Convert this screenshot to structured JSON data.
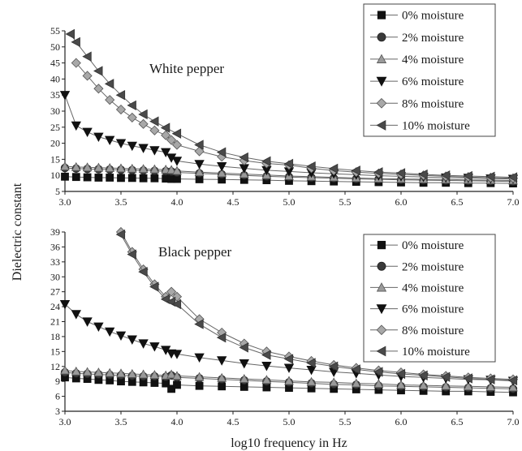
{
  "chart_data": [
    {
      "type": "line",
      "title": "White pepper",
      "xlabel": "log10 frequency in Hz",
      "ylabel": "Dielectric constant",
      "xlim": [
        3.0,
        7.0
      ],
      "ylim": [
        5,
        55
      ],
      "xticks": [
        "3.0",
        "3.5",
        "4.0",
        "4.5",
        "5.0",
        "5.5",
        "6.0",
        "6.5",
        "7.0"
      ],
      "yticks": [
        "5",
        "10",
        "15",
        "20",
        "25",
        "30",
        "35",
        "40",
        "45",
        "50",
        "55"
      ],
      "legend_position": "top-right",
      "series": [
        {
          "name": "0% moisture",
          "marker": "square",
          "x": [
            3.0,
            3.1,
            3.2,
            3.3,
            3.4,
            3.5,
            3.6,
            3.7,
            3.8,
            3.9,
            3.95,
            4.0,
            4.2,
            4.4,
            4.6,
            4.8,
            5.0,
            5.2,
            5.4,
            5.6,
            5.8,
            6.0,
            6.2,
            6.4,
            6.6,
            6.8,
            7.0
          ],
          "y": [
            9.6,
            9.5,
            9.4,
            9.3,
            9.3,
            9.2,
            9.2,
            9.1,
            9.1,
            9.0,
            8.9,
            8.9,
            8.8,
            8.7,
            8.6,
            8.5,
            8.3,
            8.2,
            8.1,
            8.0,
            7.9,
            7.8,
            7.7,
            7.7,
            7.6,
            7.6,
            7.5
          ]
        },
        {
          "name": "2% moisture",
          "marker": "circle",
          "x": [
            3.0,
            3.1,
            3.2,
            3.3,
            3.4,
            3.5,
            3.6,
            3.7,
            3.8,
            3.9,
            3.95,
            4.0,
            4.2,
            4.4,
            4.6,
            4.8,
            5.0,
            5.2,
            5.4,
            5.6,
            5.8,
            6.0,
            6.2,
            6.4,
            6.6,
            6.8,
            7.0
          ],
          "y": [
            12.3,
            12.1,
            12.0,
            11.9,
            11.8,
            11.7,
            11.6,
            11.5,
            11.4,
            11.3,
            11.2,
            10.9,
            10.6,
            10.3,
            10.0,
            9.7,
            9.5,
            9.3,
            9.1,
            8.9,
            8.8,
            8.6,
            8.5,
            8.4,
            8.3,
            8.2,
            8.1
          ]
        },
        {
          "name": "4% moisture",
          "marker": "triangle-up",
          "x": [
            3.0,
            3.1,
            3.2,
            3.3,
            3.4,
            3.5,
            3.6,
            3.7,
            3.8,
            3.9,
            3.95,
            4.0,
            4.2,
            4.4,
            4.6,
            4.8,
            5.0,
            5.2,
            5.4,
            5.6,
            5.8,
            6.0,
            6.2,
            6.4,
            6.6,
            6.8,
            7.0
          ],
          "y": [
            12.8,
            12.6,
            12.5,
            12.4,
            12.3,
            12.2,
            12.1,
            12.0,
            11.9,
            11.8,
            11.7,
            11.4,
            11.0,
            10.7,
            10.4,
            10.1,
            9.8,
            9.6,
            9.4,
            9.2,
            9.0,
            8.9,
            8.8,
            8.7,
            8.6,
            8.5,
            8.4
          ]
        },
        {
          "name": "6% moisture",
          "marker": "triangle-down",
          "x": [
            3.0,
            3.1,
            3.2,
            3.3,
            3.4,
            3.5,
            3.6,
            3.7,
            3.8,
            3.9,
            3.95,
            4.0,
            4.2,
            4.4,
            4.6,
            4.8,
            5.0,
            5.2,
            5.4,
            5.6,
            5.8,
            6.0,
            6.2,
            6.4,
            6.6,
            6.8,
            7.0
          ],
          "y": [
            35,
            25.5,
            23.5,
            22,
            21,
            20,
            19.2,
            18.5,
            17.8,
            17.2,
            15.5,
            14.5,
            13.5,
            12.8,
            12.2,
            11.6,
            11.2,
            10.8,
            10.5,
            10.2,
            9.9,
            9.7,
            9.5,
            9.3,
            9.2,
            9.0,
            8.9
          ]
        },
        {
          "name": "8% moisture",
          "marker": "diamond",
          "x": [
            3.1,
            3.2,
            3.3,
            3.4,
            3.5,
            3.6,
            3.7,
            3.8,
            3.9,
            3.95,
            4.0,
            4.2,
            4.4,
            4.6,
            4.8,
            5.0,
            5.2,
            5.4,
            5.6,
            5.8,
            6.0,
            6.2,
            6.4,
            6.6,
            6.8,
            7.0
          ],
          "y": [
            45,
            41,
            37,
            33.5,
            30.5,
            28,
            26,
            24,
            22.5,
            21,
            19.5,
            17.5,
            15.8,
            14.6,
            13.7,
            13.2,
            12.2,
            11.5,
            11.0,
            10.6,
            10.3,
            10.0,
            9.7,
            9.5,
            9.3,
            9.1
          ]
        },
        {
          "name": "10% moisture",
          "marker": "triangle-left",
          "x": [
            3.05,
            3.1,
            3.2,
            3.3,
            3.4,
            3.5,
            3.6,
            3.7,
            3.8,
            3.9,
            4.0,
            4.2,
            4.4,
            4.6,
            4.8,
            5.0,
            5.2,
            5.4,
            5.6,
            5.8,
            6.0,
            6.2,
            6.4,
            6.6,
            6.8,
            7.0
          ],
          "y": [
            54,
            51.5,
            47,
            42.5,
            38.5,
            35,
            31.8,
            29,
            26.8,
            24.8,
            23,
            19.5,
            17.2,
            15.6,
            14.4,
            13.6,
            12.8,
            12.1,
            11.5,
            11.0,
            10.7,
            10.3,
            10.0,
            9.8,
            9.6,
            9.4
          ]
        }
      ]
    },
    {
      "type": "line",
      "title": "Black pepper",
      "xlabel": "log10 frequency in Hz",
      "ylabel": "Dielectric constant",
      "xlim": [
        3.0,
        7.0
      ],
      "ylim": [
        3,
        39
      ],
      "xticks": [
        "3.0",
        "3.5",
        "4.0",
        "4.5",
        "5.0",
        "5.5",
        "6.0",
        "6.5",
        "7.0"
      ],
      "yticks": [
        "3",
        "6",
        "9",
        "12",
        "15",
        "18",
        "21",
        "24",
        "27",
        "30",
        "33",
        "36",
        "39"
      ],
      "legend_position": "top-right",
      "series": [
        {
          "name": "0% moisture",
          "marker": "square",
          "x": [
            3.0,
            3.1,
            3.2,
            3.3,
            3.4,
            3.5,
            3.6,
            3.7,
            3.8,
            3.9,
            3.95,
            4.0,
            4.2,
            4.4,
            4.6,
            4.8,
            5.0,
            5.2,
            5.4,
            5.6,
            5.8,
            6.0,
            6.2,
            6.4,
            6.6,
            6.8,
            7.0
          ],
          "y": [
            9.8,
            9.6,
            9.5,
            9.3,
            9.2,
            9.0,
            8.9,
            8.8,
            8.7,
            8.6,
            7.5,
            8.3,
            8.1,
            8.0,
            7.9,
            7.8,
            7.7,
            7.6,
            7.5,
            7.4,
            7.3,
            7.2,
            7.1,
            7.0,
            7.0,
            6.9,
            6.8
          ]
        },
        {
          "name": "2% moisture",
          "marker": "circle",
          "x": [
            3.0,
            3.1,
            3.2,
            3.3,
            3.4,
            3.5,
            3.6,
            3.7,
            3.8,
            3.9,
            3.95,
            4.0,
            4.2,
            4.4,
            4.6,
            4.8,
            5.0,
            5.2,
            5.4,
            5.6,
            5.8,
            6.0,
            6.2,
            6.4,
            6.6,
            6.8,
            7.0
          ],
          "y": [
            10.8,
            10.6,
            10.5,
            10.4,
            10.3,
            10.2,
            10.1,
            10.0,
            10.0,
            9.9,
            10.2,
            9.8,
            9.6,
            9.4,
            9.2,
            9.0,
            8.8,
            8.6,
            8.4,
            8.3,
            8.1,
            8.0,
            7.9,
            7.8,
            7.7,
            7.6,
            7.5
          ]
        },
        {
          "name": "4% moisture",
          "marker": "triangle-up",
          "x": [
            3.0,
            3.1,
            3.2,
            3.3,
            3.4,
            3.5,
            3.6,
            3.7,
            3.8,
            3.9,
            3.95,
            4.0,
            4.2,
            4.4,
            4.6,
            4.8,
            5.0,
            5.2,
            5.4,
            5.6,
            5.8,
            6.0,
            6.2,
            6.4,
            6.6,
            6.8,
            7.0
          ],
          "y": [
            11.2,
            11.0,
            10.9,
            10.8,
            10.7,
            10.6,
            10.5,
            10.4,
            10.3,
            10.2,
            10.4,
            10.1,
            9.9,
            9.7,
            9.5,
            9.3,
            9.1,
            8.9,
            8.8,
            8.6,
            8.5,
            8.3,
            8.2,
            8.1,
            8.0,
            7.9,
            7.8
          ]
        },
        {
          "name": "6% moisture",
          "marker": "triangle-down",
          "x": [
            3.0,
            3.1,
            3.2,
            3.3,
            3.4,
            3.5,
            3.6,
            3.7,
            3.8,
            3.9,
            3.95,
            4.0,
            4.2,
            4.4,
            4.6,
            4.8,
            5.0,
            5.2,
            5.4,
            5.6,
            5.8,
            6.0,
            6.2,
            6.4,
            6.6,
            6.8,
            7.0
          ],
          "y": [
            24.5,
            22.5,
            21,
            20,
            19,
            18.2,
            17.4,
            16.6,
            16.0,
            15.3,
            14.6,
            14.5,
            13.8,
            13.2,
            12.6,
            12.1,
            11.7,
            11.3,
            10.9,
            10.6,
            10.3,
            10.0,
            9.8,
            9.6,
            9.4,
            9.3,
            9.1
          ]
        },
        {
          "name": "8% moisture",
          "marker": "diamond",
          "x": [
            3.5,
            3.6,
            3.7,
            3.8,
            3.9,
            3.95,
            4.0,
            4.2,
            4.4,
            4.6,
            4.8,
            5.0,
            5.2,
            5.4,
            5.6,
            5.8,
            6.0,
            6.2,
            6.4,
            6.6,
            6.8,
            7.0
          ],
          "y": [
            39,
            35,
            31.5,
            28.5,
            26,
            27,
            26,
            21.5,
            18.8,
            16.6,
            15.0,
            14.0,
            13.1,
            12.3,
            11.7,
            11.2,
            10.8,
            10.4,
            10.1,
            9.8,
            9.6,
            9.4
          ]
        },
        {
          "name": "10% moisture",
          "marker": "triangle-left",
          "x": [
            3.5,
            3.6,
            3.7,
            3.8,
            3.9,
            3.95,
            4.0,
            4.2,
            4.4,
            4.6,
            4.8,
            5.0,
            5.2,
            5.4,
            5.6,
            5.8,
            6.0,
            6.2,
            6.4,
            6.6,
            6.8,
            7.0
          ],
          "y": [
            38.5,
            34.5,
            31,
            28,
            25.5,
            25,
            24.5,
            20.5,
            17.8,
            15.8,
            14.3,
            13.5,
            12.7,
            12.0,
            11.4,
            10.9,
            10.5,
            10.2,
            9.9,
            9.6,
            9.4,
            9.2
          ]
        }
      ]
    }
  ]
}
